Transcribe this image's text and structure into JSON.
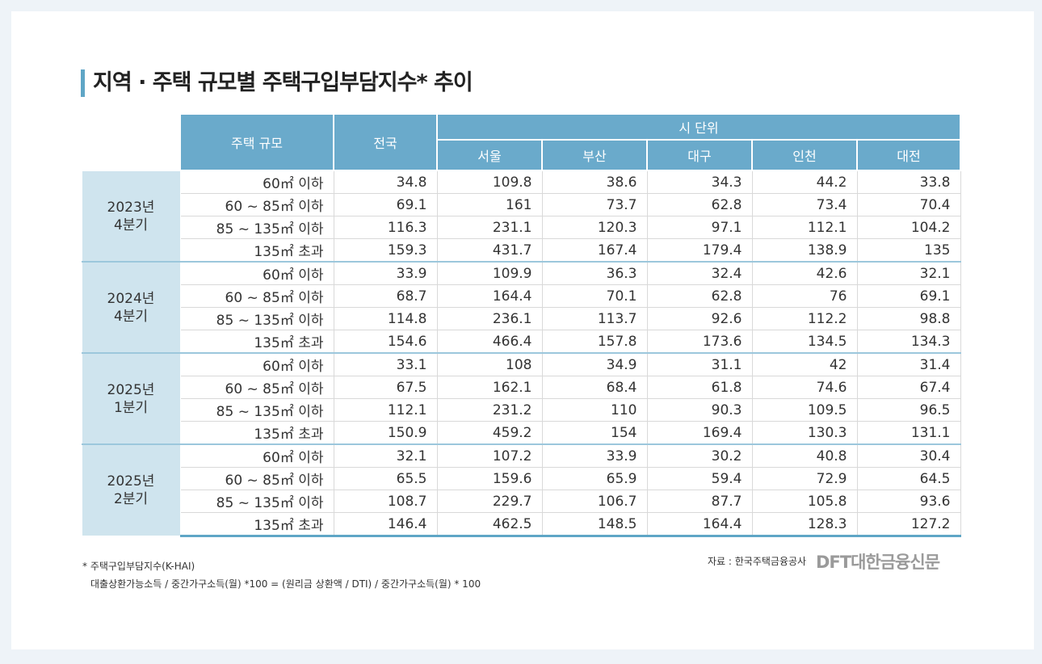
{
  "title": "지역 · 주택 규모별 주택구입부담지수* 추이",
  "table": {
    "headers": {
      "size": "주택 규모",
      "national": "전국",
      "city_group": "시 단위",
      "cities": [
        "서울",
        "부산",
        "대구",
        "인천",
        "대전"
      ]
    },
    "groups": [
      {
        "label": "2023년\n4분기",
        "rows": [
          {
            "size": "60㎡ 이하",
            "values": [
              34.8,
              109.8,
              38.6,
              34.3,
              44.2,
              33.8
            ]
          },
          {
            "size": "60 ~ 85㎡ 이하",
            "values": [
              69.1,
              161,
              73.7,
              62.8,
              73.4,
              70.4
            ]
          },
          {
            "size": "85 ~ 135㎡ 이하",
            "values": [
              116.3,
              231.1,
              120.3,
              97.1,
              112.1,
              104.2
            ]
          },
          {
            "size": "135㎡ 초과",
            "values": [
              159.3,
              431.7,
              167.4,
              179.4,
              138.9,
              135
            ]
          }
        ]
      },
      {
        "label": "2024년\n4분기",
        "rows": [
          {
            "size": "60㎡ 이하",
            "values": [
              33.9,
              109.9,
              36.3,
              32.4,
              42.6,
              32.1
            ]
          },
          {
            "size": "60 ~ 85㎡ 이하",
            "values": [
              68.7,
              164.4,
              70.1,
              62.8,
              76,
              69.1
            ]
          },
          {
            "size": "85 ~ 135㎡ 이하",
            "values": [
              114.8,
              236.1,
              113.7,
              92.6,
              112.2,
              98.8
            ]
          },
          {
            "size": "135㎡ 초과",
            "values": [
              154.6,
              466.4,
              157.8,
              173.6,
              134.5,
              134.3
            ]
          }
        ]
      },
      {
        "label": "2025년\n1분기",
        "rows": [
          {
            "size": "60㎡ 이하",
            "values": [
              33.1,
              108,
              34.9,
              31.1,
              42,
              31.4
            ]
          },
          {
            "size": "60 ~ 85㎡ 이하",
            "values": [
              67.5,
              162.1,
              68.4,
              61.8,
              74.6,
              67.4
            ]
          },
          {
            "size": "85 ~ 135㎡ 이하",
            "values": [
              112.1,
              231.2,
              110,
              90.3,
              109.5,
              96.5
            ]
          },
          {
            "size": "135㎡ 초과",
            "values": [
              150.9,
              459.2,
              154,
              169.4,
              130.3,
              131.1
            ]
          }
        ]
      },
      {
        "label": "2025년\n2분기",
        "rows": [
          {
            "size": "60㎡ 이하",
            "values": [
              32.1,
              107.2,
              33.9,
              30.2,
              40.8,
              30.4
            ]
          },
          {
            "size": "60 ~ 85㎡ 이하",
            "values": [
              65.5,
              159.6,
              65.9,
              59.4,
              72.9,
              64.5
            ]
          },
          {
            "size": "85 ~ 135㎡ 이하",
            "values": [
              108.7,
              229.7,
              106.7,
              87.7,
              105.8,
              93.6
            ]
          },
          {
            "size": "135㎡ 초과",
            "values": [
              146.4,
              462.5,
              148.5,
              164.4,
              128.3,
              127.2
            ]
          }
        ]
      }
    ]
  },
  "footnote": [
    "* 주택구입부담지수(K-HAI)",
    "대출상환가능소득 / 중간가구소득(월) *100 = (원리금 상환액 / DTI) / 중간가구소득(월) * 100"
  ],
  "source": "자료 : 한국주택금융공사",
  "logo": "DFT대한금융신문"
}
